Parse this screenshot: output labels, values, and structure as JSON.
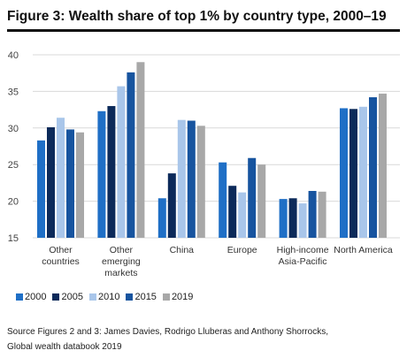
{
  "figure_title": "Figure 3: Wealth share of top 1% by country type, 2000–19",
  "source_lines": [
    "Source Figures 2 and 3: James Davies, Rodrigo Lluberas and Anthony Shorrocks,",
    "Global wealth databook 2019"
  ],
  "chart_data": {
    "type": "bar",
    "title": "Figure 3: Wealth share of top 1% by country type, 2000–19",
    "xlabel": "",
    "ylabel": "",
    "ylim": [
      15,
      40
    ],
    "yticks": [
      15,
      20,
      25,
      30,
      35,
      40
    ],
    "grid": "horizontal",
    "legend_position": "bottom",
    "categories": [
      [
        "Other",
        "countries"
      ],
      [
        "Other",
        "emerging",
        "markets"
      ],
      [
        "China"
      ],
      [
        "Europe"
      ],
      [
        "High-income",
        "Asia-Pacific"
      ],
      [
        "North America"
      ]
    ],
    "series": [
      {
        "name": "2000",
        "color": "#1f6fc6",
        "values": [
          28.3,
          32.3,
          20.4,
          25.3,
          20.3,
          32.7
        ]
      },
      {
        "name": "2005",
        "color": "#0c2a5a",
        "values": [
          30.1,
          33.0,
          23.8,
          22.1,
          20.4,
          32.6
        ]
      },
      {
        "name": "2010",
        "color": "#a9c6ea",
        "values": [
          31.4,
          35.7,
          31.1,
          21.2,
          19.7,
          32.9
        ]
      },
      {
        "name": "2015",
        "color": "#17549f",
        "values": [
          29.8,
          37.6,
          31.0,
          25.9,
          21.4,
          34.2
        ]
      },
      {
        "name": "2019",
        "color": "#a8a8a8",
        "values": [
          29.4,
          39.0,
          30.3,
          25.0,
          21.3,
          34.7
        ]
      }
    ]
  }
}
